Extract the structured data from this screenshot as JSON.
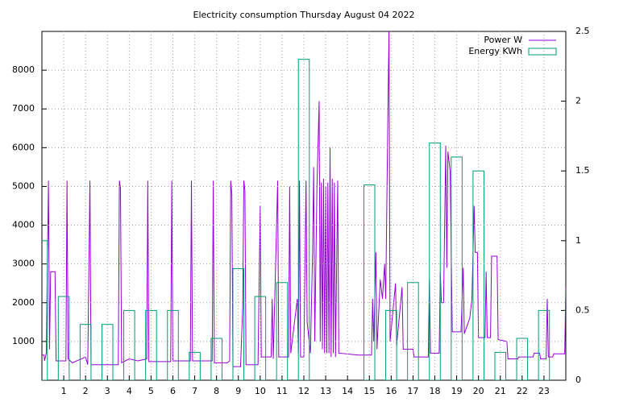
{
  "chart_data": {
    "type": "line",
    "title": "Electricity consumption Thursday August 04 2022",
    "xlim": [
      0,
      24
    ],
    "xticks": [
      1,
      2,
      3,
      4,
      5,
      6,
      7,
      8,
      9,
      10,
      11,
      12,
      13,
      14,
      15,
      16,
      17,
      18,
      19,
      20,
      21,
      22,
      23
    ],
    "ylim": [
      0,
      9000
    ],
    "yticks": [
      1000,
      2000,
      3000,
      4000,
      5000,
      6000,
      7000,
      8000
    ],
    "y2lim": [
      0,
      2.5
    ],
    "y2ticks": [
      0,
      0.5,
      1,
      1.5,
      2,
      2.5
    ],
    "grid": true,
    "legend": "top-right",
    "series": [
      {
        "name": "Power W",
        "type": "line",
        "color": "#9400d3",
        "x": [
          0,
          0.1,
          0.12,
          0.2,
          0.3,
          0.35,
          0.4,
          0.6,
          0.65,
          1.1,
          1.15,
          1.2,
          1.4,
          1.8,
          2.0,
          2.1,
          2.2,
          2.25,
          3.5,
          3.55,
          3.6,
          3.65,
          4.0,
          4.4,
          4.8,
          4.85,
          4.9,
          5.9,
          5.95,
          6.0,
          6.8,
          6.85,
          6.9,
          7.8,
          7.85,
          7.9,
          8.5,
          8.6,
          8.65,
          8.7,
          8.75,
          9.1,
          9.2,
          9.25,
          9.3,
          9.35,
          9.9,
          10.0,
          10.05,
          10.5,
          10.55,
          10.6,
          10.8,
          10.85,
          11.3,
          11.35,
          11.4,
          11.7,
          11.75,
          11.8,
          11.85,
          12.0,
          12.1,
          12.15,
          12.3,
          12.4,
          12.45,
          12.5,
          12.6,
          12.7,
          12.75,
          12.8,
          12.85,
          12.9,
          12.95,
          13.0,
          13.05,
          13.1,
          13.15,
          13.2,
          13.25,
          13.3,
          13.35,
          13.4,
          13.45,
          13.55,
          13.6,
          14.5,
          15.1,
          15.15,
          15.2,
          15.3,
          15.35,
          15.5,
          15.6,
          15.7,
          15.75,
          15.85,
          15.9,
          15.95,
          16.2,
          16.25,
          16.5,
          16.55,
          17.0,
          17.05,
          17.7,
          17.75,
          17.8,
          18.2,
          18.25,
          18.3,
          18.4,
          18.5,
          18.55,
          18.6,
          18.7,
          18.8,
          19.2,
          19.3,
          19.35,
          19.6,
          19.7,
          19.8,
          19.85,
          19.95,
          20.0,
          20.3,
          20.35,
          20.4,
          20.55,
          20.6,
          20.85,
          20.9,
          21.3,
          21.35,
          21.8,
          21.85,
          22.5,
          22.55,
          22.8,
          22.85,
          23.1,
          23.15,
          23.2,
          23.4,
          23.45,
          23.95,
          24.0
        ],
        "values": [
          650,
          650,
          500,
          700,
          5150,
          800,
          2800,
          2800,
          500,
          500,
          5150,
          550,
          450,
          550,
          600,
          400,
          5150,
          400,
          400,
          5150,
          4950,
          450,
          550,
          500,
          550,
          5150,
          480,
          480,
          5150,
          500,
          500,
          5150,
          500,
          500,
          5150,
          450,
          450,
          500,
          5150,
          4800,
          350,
          350,
          1900,
          5150,
          4900,
          400,
          400,
          4500,
          600,
          600,
          2100,
          550,
          5150,
          600,
          600,
          5000,
          700,
          2100,
          700,
          5150,
          600,
          600,
          5150,
          1500,
          700,
          3300,
          5500,
          1000,
          5000,
          7200,
          1000,
          5100,
          800,
          5200,
          700,
          5000,
          700,
          5100,
          700,
          6000,
          600,
          5200,
          700,
          5100,
          600,
          5150,
          700,
          650,
          650,
          2100,
          1000,
          3300,
          800,
          2600,
          2100,
          3000,
          2100,
          6900,
          9000,
          1000,
          2500,
          900,
          2400,
          800,
          800,
          600,
          600,
          2600,
          700,
          700,
          2800,
          2000,
          2000,
          6050,
          2900,
          5900,
          5400,
          1250,
          1250,
          2900,
          1200,
          1600,
          2100,
          4500,
          3300,
          3300,
          1100,
          1100,
          2800,
          1100,
          1100,
          3200,
          3200,
          1050,
          1000,
          550,
          550,
          600,
          600,
          700,
          700,
          550,
          550,
          2100,
          600,
          600,
          680,
          680,
          2400
        ]
      },
      {
        "name": "Energy KWh",
        "type": "bar",
        "axis": "y2",
        "color": "#009e73",
        "x": [
          0,
          1,
          2,
          3,
          4,
          5,
          6,
          7,
          8,
          9,
          10,
          11,
          12,
          13,
          14,
          15,
          16,
          17,
          18,
          19,
          20,
          21,
          22,
          23
        ],
        "values": [
          1.0,
          0.6,
          0.4,
          0.4,
          0.5,
          0.5,
          0.5,
          0.2,
          0.3,
          0.8,
          0.6,
          0.7,
          2.3,
          0,
          0,
          1.4,
          0.5,
          0.7,
          1.7,
          1.6,
          1.5,
          0.2,
          0.3,
          0.5
        ]
      }
    ]
  }
}
